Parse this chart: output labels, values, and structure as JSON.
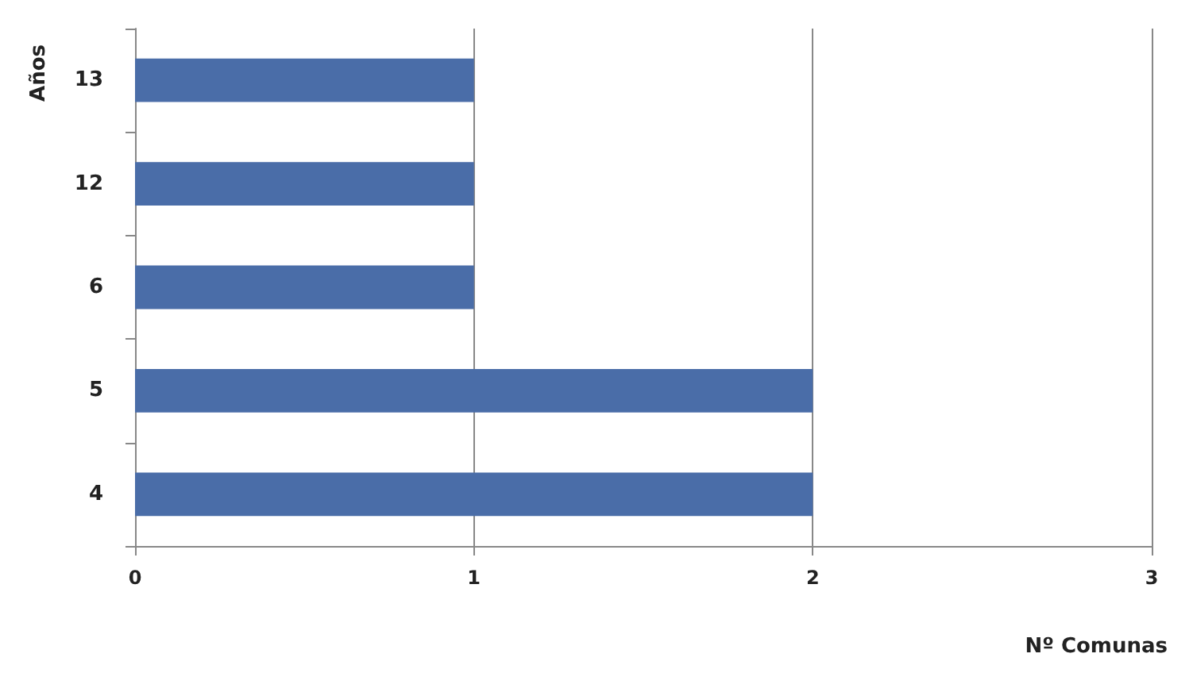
{
  "chart_data": {
    "type": "bar",
    "orientation": "horizontal",
    "xlabel": "Nº Comunas",
    "ylabel": "Años",
    "categories": [
      "13",
      "12",
      "6",
      "5",
      "4"
    ],
    "values": [
      1,
      1,
      1,
      2,
      2
    ],
    "color": "#4a6da8",
    "xlim": [
      0,
      3
    ],
    "xticks": [
      0,
      1,
      2,
      3
    ],
    "grid": "x"
  }
}
